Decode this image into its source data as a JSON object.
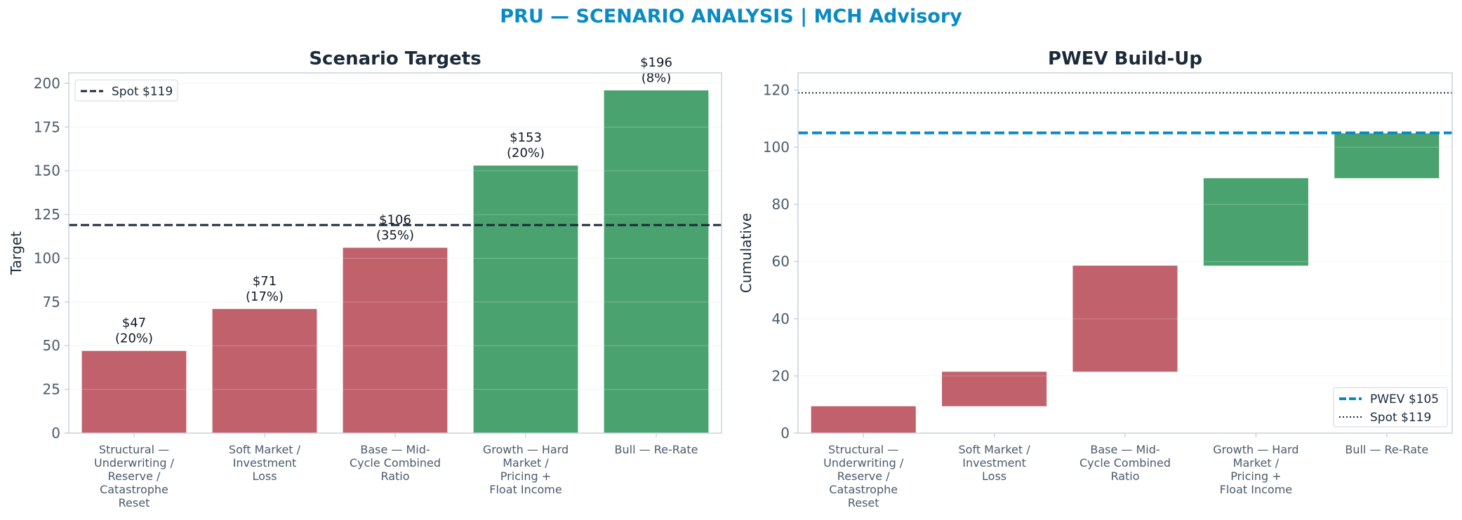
{
  "page": {
    "title": "PRU — SCENARIO ANALYSIS | MCH Advisory"
  },
  "colors": {
    "bear": "#c0616b",
    "bull": "#4aa36e",
    "accent": "#0a8ac4",
    "dark": "#1b2a3a",
    "axis": "#c9d2de",
    "tick": "#4a5a6a"
  },
  "chart_data": [
    {
      "type": "bar",
      "title": "Scenario Targets",
      "xlabel": "",
      "ylabel": "Target",
      "ylim": [
        0,
        206
      ],
      "yticks": [
        0,
        25,
        50,
        75,
        100,
        125,
        150,
        175,
        200
      ],
      "categories": [
        [
          "Structural —",
          "Underwriting /",
          "Reserve /",
          "Catastrophe",
          "Reset"
        ],
        [
          "Soft Market /",
          "Investment",
          "Loss"
        ],
        [
          "Base — Mid-",
          "Cycle Combined",
          "Ratio"
        ],
        [
          "Growth — Hard",
          "Market /",
          "Pricing +",
          "Float Income"
        ],
        [
          "Bull — Re-Rate"
        ]
      ],
      "values": [
        47,
        71,
        106,
        153,
        196
      ],
      "probabilities": [
        20,
        17,
        35,
        20,
        8
      ],
      "bar_labels": [
        [
          "$47",
          "(20%)"
        ],
        [
          "$71",
          "(17%)"
        ],
        [
          "$106",
          "(35%)"
        ],
        [
          "$153",
          "(20%)"
        ],
        [
          "$196",
          "(8%)"
        ]
      ],
      "bar_color_keys": [
        "bear",
        "bear",
        "bear",
        "bull",
        "bull"
      ],
      "reference_lines": [
        {
          "label": "Spot $119",
          "value": 119,
          "style": "dashed",
          "color": "#1b2a3a"
        }
      ],
      "legend": {
        "placement": "top-left",
        "entries": [
          "Spot $119"
        ]
      },
      "grid": true
    },
    {
      "type": "bar",
      "subtype": "waterfall",
      "title": "PWEV Build-Up",
      "xlabel": "",
      "ylabel": "Cumulative",
      "ylim": [
        0,
        126
      ],
      "yticks": [
        0,
        20,
        40,
        60,
        80,
        100,
        120
      ],
      "categories": [
        [
          "Structural —",
          "Underwriting /",
          "Reserve /",
          "Catastrophe",
          "Reset"
        ],
        [
          "Soft Market /",
          "Investment",
          "Loss"
        ],
        [
          "Base — Mid-",
          "Cycle Combined",
          "Ratio"
        ],
        [
          "Growth — Hard",
          "Market /",
          "Pricing +",
          "Float Income"
        ],
        [
          "Bull — Re-Rate"
        ]
      ],
      "segments": [
        {
          "start": 0,
          "end": 9.4
        },
        {
          "start": 9.4,
          "end": 21.47
        },
        {
          "start": 21.47,
          "end": 58.57
        },
        {
          "start": 58.57,
          "end": 89.17
        },
        {
          "start": 89.17,
          "end": 104.85
        }
      ],
      "bar_color_keys": [
        "bear",
        "bear",
        "bear",
        "bull",
        "bull"
      ],
      "reference_lines": [
        {
          "label": "PWEV $105",
          "value": 105,
          "style": "dashed",
          "color": "#0a8ac4"
        },
        {
          "label": "Spot $119",
          "value": 119,
          "style": "dotted",
          "color": "#1b2a3a"
        }
      ],
      "legend": {
        "placement": "bottom-right",
        "entries": [
          "PWEV $105",
          "Spot $119"
        ]
      },
      "grid": true
    }
  ]
}
